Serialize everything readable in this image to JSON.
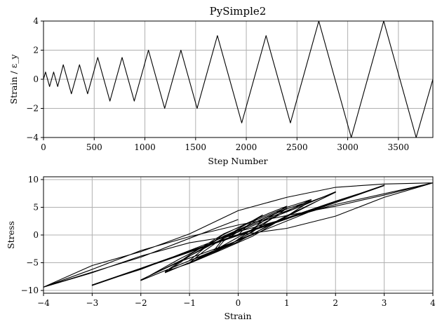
{
  "chart_data": [
    {
      "type": "line",
      "title": "PySimple2",
      "xlabel": "Step Number",
      "ylabel": "Strain / ε_y",
      "xlim": [
        0,
        3840
      ],
      "ylim": [
        -4,
        4
      ],
      "xticks": [
        0,
        500,
        1000,
        1500,
        2000,
        2500,
        3000,
        3500
      ],
      "yticks": [
        -4,
        -2,
        0,
        2,
        4
      ],
      "grid": true,
      "series": [
        {
          "color": "#000000",
          "x": [
            0,
            20,
            60,
            100,
            140,
            195,
            275,
            355,
            435,
            535,
            655,
            775,
            895,
            1035,
            1195,
            1355,
            1515,
            1715,
            1955,
            2195,
            2435,
            2715,
            3035,
            3355,
            3675,
            3840
          ],
          "y": [
            0,
            0.5,
            -0.5,
            0.5,
            -0.5,
            1,
            -1,
            1,
            -1,
            1.5,
            -1.5,
            1.5,
            -1.5,
            2,
            -2,
            2,
            -2,
            3,
            -3,
            3,
            -3,
            4,
            -4,
            4,
            -4,
            0
          ]
        }
      ]
    },
    {
      "type": "line",
      "title": "",
      "xlabel": "Strain",
      "ylabel": "Stress",
      "xlim": [
        -4,
        4
      ],
      "ylim": [
        -10.5,
        10.5
      ],
      "xticks": [
        -4,
        -3,
        -2,
        -1,
        0,
        1,
        2,
        3,
        4
      ],
      "yticks": [
        -10,
        -5,
        0,
        5,
        10
      ],
      "grid": true,
      "series": [
        {
          "color": "#000000",
          "description_amplitudes": [
            0.5,
            1,
            1.5,
            2,
            3,
            4
          ],
          "x": [
            0,
            0.2,
            0.5,
            0.3,
            0,
            -0.3,
            -0.5,
            -0.2,
            0,
            0.3,
            0.5,
            0.2,
            0,
            -0.3,
            -0.5,
            -0.1,
            0.5,
            1,
            0.6,
            0.2,
            -0.3,
            -0.7,
            -1,
            -0.6,
            -0.2,
            0.3,
            0.7,
            1,
            0.6,
            0.2,
            -0.3,
            -0.7,
            -1,
            -0.6,
            0,
            0.7,
            1.5,
            1,
            0.4,
            -0.3,
            -1,
            -1.5,
            -1,
            -0.4,
            0.3,
            1,
            1.5,
            1,
            0.4,
            -0.3,
            -1,
            -1.5,
            -0.9,
            0,
            1,
            2,
            1.3,
            0.6,
            -0.3,
            -1.2,
            -2,
            -1.3,
            -0.6,
            0.3,
            1.2,
            2,
            1.3,
            0.6,
            -0.3,
            -1.2,
            -2,
            -1.2,
            0,
            1.5,
            3,
            2,
            1,
            0,
            -1,
            -2,
            -3,
            -2,
            -1,
            0,
            1,
            2,
            3,
            2,
            1,
            0,
            -1,
            -2,
            -3,
            -2,
            -1,
            0,
            1,
            2,
            4,
            3,
            2,
            1,
            0,
            -1,
            -2,
            -3,
            -4,
            -3,
            -2,
            -1,
            0,
            1,
            2,
            3,
            4,
            3,
            2,
            1,
            0,
            -1,
            -2,
            -3,
            -4,
            -2,
            0
          ],
          "y": [
            0,
            1.8,
            3.6,
            2.6,
            1.1,
            -0.6,
            -2.8,
            -1.8,
            -0.9,
            0.7,
            2.9,
            1.7,
            0.6,
            -1.1,
            -3.2,
            -1.4,
            2.4,
            5.2,
            3.8,
            2.2,
            0.1,
            -2.4,
            -4.6,
            -3.4,
            -1.8,
            0.6,
            3.0,
            4.8,
            3.3,
            1.7,
            -0.5,
            -2.9,
            -5.0,
            -3.3,
            -0.4,
            3.0,
            6.4,
            5.0,
            2.8,
            0.2,
            -3.6,
            -6.6,
            -5.1,
            -2.9,
            -0.2,
            3.4,
            6.2,
            4.7,
            2.5,
            -0.2,
            -3.8,
            -6.8,
            -4.6,
            -1.2,
            3.5,
            7.7,
            5.4,
            3.0,
            -0.3,
            -4.3,
            -8.2,
            -5.7,
            -3.2,
            0.2,
            4.2,
            7.8,
            5.2,
            2.8,
            -0.6,
            -4.7,
            -8.1,
            -4.8,
            -1.0,
            4.3,
            8.9,
            6.1,
            3.1,
            0.1,
            -2.9,
            -6.0,
            -9.1,
            -6.1,
            -3.1,
            -0.1,
            2.9,
            6.0,
            9.0,
            6.0,
            3.0,
            0.0,
            -3.0,
            -6.0,
            -9.0,
            -6.2,
            -2.8,
            0.6,
            3.0,
            5.5,
            9.4,
            6.8,
            3.4,
            1.2,
            0.0,
            -1.4,
            -3.8,
            -6.8,
            -9.4,
            -5.5,
            -3.0,
            0.2,
            4.4,
            6.8,
            8.6,
            9.2,
            9.4,
            7.2,
            5.2,
            3.5,
            1.8,
            -0.3,
            -2.8,
            -6.2,
            -9.4,
            -4.0,
            2.8
          ]
        }
      ]
    }
  ]
}
